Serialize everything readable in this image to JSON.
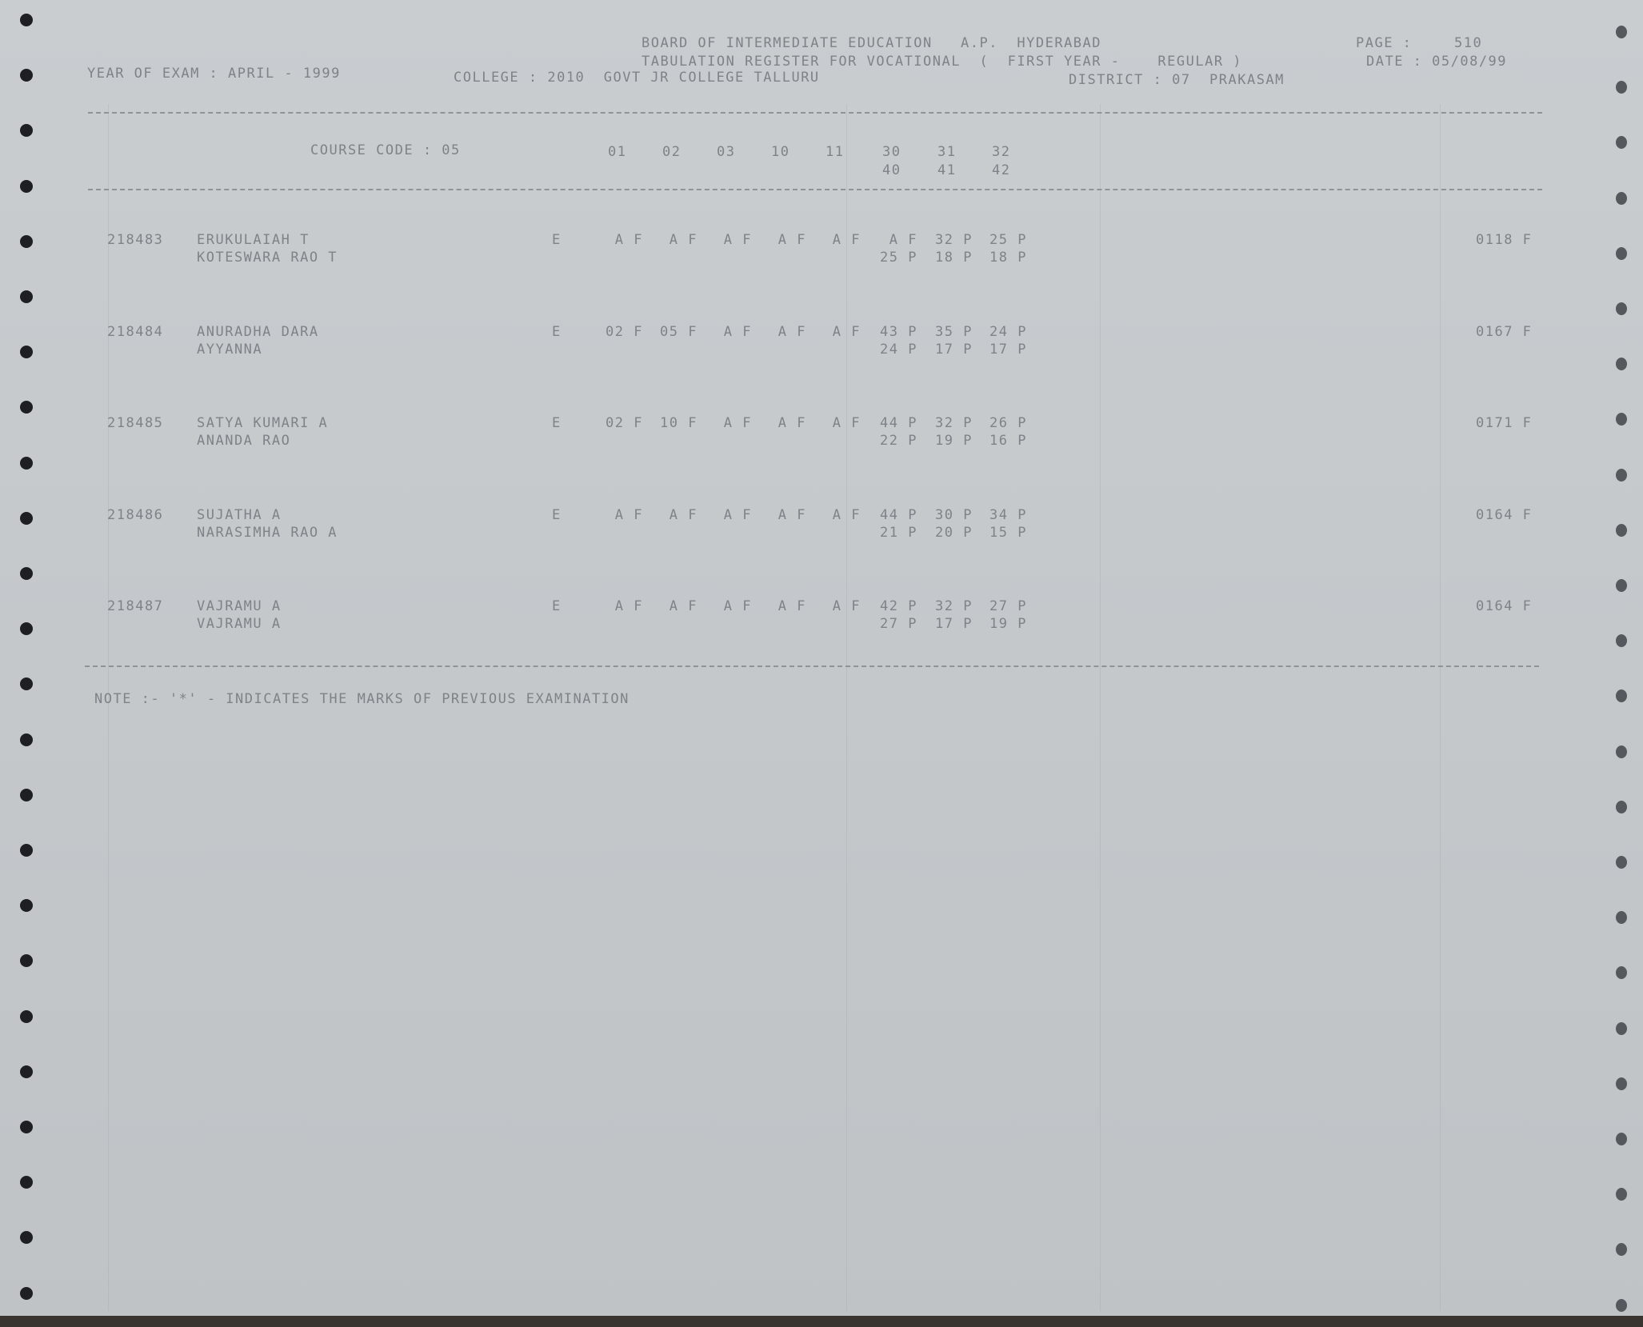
{
  "header": {
    "board": "BOARD OF INTERMEDIATE EDUCATION   A.P.  HYDERABAD",
    "register": "TABULATION REGISTER FOR VOCATIONAL  (  FIRST YEAR -    REGULAR )",
    "district": "DISTRICT : 07  PRAKASAM",
    "year_of_exam": "YEAR OF EXAM : APRIL - 1999",
    "college": "COLLEGE : 2010  GOVT JR COLLEGE TALLURU",
    "page_label": "PAGE :",
    "page_number": "510",
    "date": "DATE : 05/08/99"
  },
  "columns": {
    "course_code": "COURSE CODE : 05",
    "subjects_row1": [
      "01",
      "02",
      "03",
      "10",
      "11",
      "30",
      "31",
      "32"
    ],
    "subjects_row2": [
      "40",
      "41",
      "42"
    ]
  },
  "students": [
    {
      "roll": "218483",
      "name": "ERUKULAIAH T",
      "parent": "KOTESWARA RAO T",
      "medium": "E",
      "marks1": [
        "A F",
        "A F",
        "A F",
        "A F",
        "A F",
        "A F",
        "32 P",
        "25 P"
      ],
      "marks2": [
        "25 P",
        "18 P",
        "18 P"
      ],
      "total": "0118 F"
    },
    {
      "roll": "218484",
      "name": "ANURADHA DARA",
      "parent": "AYYANNA",
      "medium": "E",
      "marks1": [
        "02 F",
        "05 F",
        "A F",
        "A F",
        "A F",
        "43 P",
        "35 P",
        "24 P"
      ],
      "marks2": [
        "24 P",
        "17 P",
        "17 P"
      ],
      "total": "0167 F"
    },
    {
      "roll": "218485",
      "name": "SATYA KUMARI A",
      "parent": "ANANDA RAO",
      "medium": "E",
      "marks1": [
        "02 F",
        "10 F",
        "A F",
        "A F",
        "A F",
        "44 P",
        "32 P",
        "26 P"
      ],
      "marks2": [
        "22 P",
        "19 P",
        "16 P"
      ],
      "total": "0171 F"
    },
    {
      "roll": "218486",
      "name": "SUJATHA A",
      "parent": "NARASIMHA RAO A",
      "medium": "E",
      "marks1": [
        "A F",
        "A F",
        "A F",
        "A F",
        "A F",
        "44 P",
        "30 P",
        "34 P"
      ],
      "marks2": [
        "21 P",
        "20 P",
        "15 P"
      ],
      "total": "0164 F"
    },
    {
      "roll": "218487",
      "name": "VAJRAMU A",
      "parent": "VAJRAMU A",
      "medium": "E",
      "marks1": [
        "A F",
        "A F",
        "A F",
        "A F",
        "A F",
        "42 P",
        "32 P",
        "27 P"
      ],
      "marks2": [
        "27 P",
        "17 P",
        "19 P"
      ],
      "total": "0164 F"
    }
  ],
  "note": "NOTE :- '*' - INDICATES THE MARKS OF PREVIOUS EXAMINATION"
}
